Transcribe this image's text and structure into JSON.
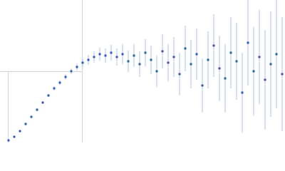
{
  "chart_data": {
    "type": "scatter",
    "x": [
      3,
      5,
      7,
      9,
      11,
      13,
      15,
      17,
      19,
      21,
      23,
      25,
      27,
      29,
      31,
      33,
      35,
      37,
      39,
      41,
      43,
      45,
      47,
      49,
      51,
      53,
      55,
      57,
      59,
      61,
      63,
      65,
      67,
      69,
      71,
      73,
      75,
      77,
      79,
      81,
      83,
      85,
      87,
      89,
      91,
      93,
      95,
      97,
      99
    ],
    "values": [
      1.5,
      4,
      8,
      13,
      18,
      23,
      28,
      33,
      38,
      42,
      46,
      50,
      53,
      56,
      58,
      60,
      62,
      61,
      63,
      60,
      62,
      57,
      61,
      55,
      63,
      58,
      50,
      64,
      56,
      60,
      48,
      66,
      55,
      62,
      40,
      58,
      68,
      52,
      45,
      63,
      57,
      35,
      70,
      50,
      60,
      44,
      55,
      62,
      48
    ],
    "errors": [
      0.5,
      0.5,
      0.6,
      0.7,
      0.8,
      0.9,
      1,
      1.2,
      1.4,
      1.6,
      1.8,
      2,
      2.5,
      3,
      3.5,
      4,
      4.5,
      5,
      5.5,
      6,
      7,
      7.5,
      8,
      9,
      9.5,
      10,
      11,
      12,
      13,
      14,
      15,
      16,
      17,
      18,
      19,
      20,
      22,
      23,
      24,
      25,
      27,
      28,
      30,
      31,
      33,
      35,
      37,
      38,
      40
    ],
    "color": "#3a66b8",
    "error_color": "#b9cbe8",
    "xlim": [
      0,
      100
    ],
    "ylim": [
      0,
      100
    ]
  }
}
